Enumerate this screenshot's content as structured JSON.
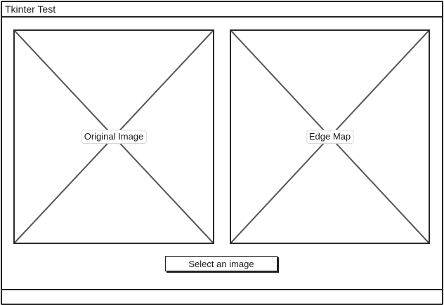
{
  "window": {
    "title": "Tkinter Test"
  },
  "main": {
    "original_image_label": "Original Image",
    "edge_map_label": "Edge Map",
    "select_button_label": "Select an image"
  }
}
